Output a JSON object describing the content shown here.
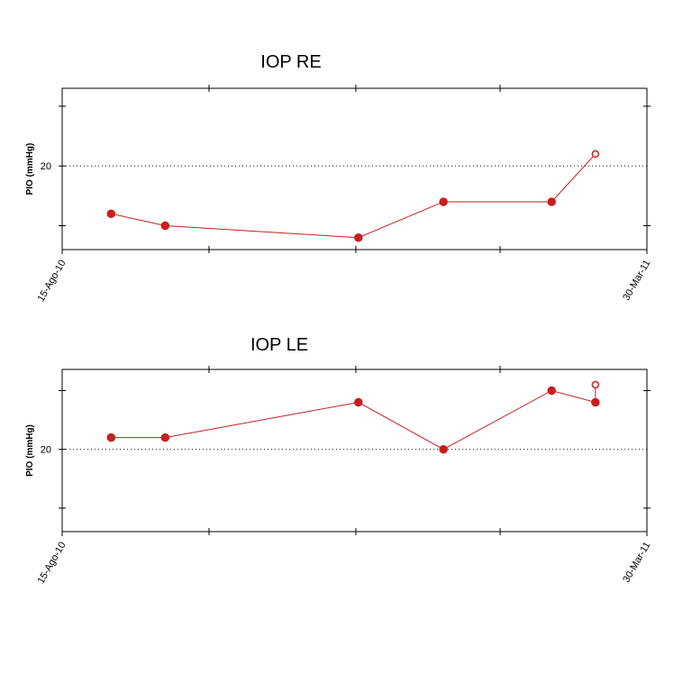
{
  "chart_data": [
    {
      "type": "line",
      "title": "IOP RE",
      "y_label": "PIO (mmHg)",
      "x": [
        "2010-09-03",
        "2010-09-24",
        "2010-12-08",
        "2011-01-10",
        "2011-02-21",
        "2011-03-10"
      ],
      "series": [
        {
          "name": "IOP RE",
          "color": "#c81e1e",
          "values": [
            16,
            15,
            14,
            17,
            17,
            21
          ],
          "hollow": [
            false,
            false,
            false,
            false,
            false,
            true
          ]
        }
      ],
      "xlim": [
        "2010-08-15",
        "2011-03-30"
      ],
      "xticks": [
        {
          "value": "2010-08-15",
          "label": "15-Ago-10"
        },
        {
          "value": "2011-03-30",
          "label": "30-Mar-11"
        }
      ],
      "minor_xticks": [
        "2010-10-11",
        "2010-12-07",
        "2011-02-01"
      ],
      "ylim": [
        13,
        26.5
      ],
      "yticks": [
        20
      ],
      "minor_yticks": [
        15,
        25
      ],
      "grid": true
    },
    {
      "type": "line",
      "title": "IOP LE",
      "y_label": "PIO (mmHg)",
      "x": [
        "2010-09-03",
        "2010-09-24",
        "2010-12-08",
        "2011-01-10",
        "2011-02-21",
        "2011-03-10",
        "2011-03-10"
      ],
      "series": [
        {
          "name": "IOP LE",
          "color": "#c81e1e",
          "values": [
            21,
            21,
            24,
            20,
            25,
            24,
            25.5
          ],
          "hollow": [
            false,
            false,
            false,
            false,
            false,
            false,
            true
          ]
        }
      ],
      "xlim": [
        "2010-08-15",
        "2011-03-30"
      ],
      "xticks": [
        {
          "value": "2010-08-15",
          "label": "15-Ago-10"
        },
        {
          "value": "2011-03-30",
          "label": "30-Mar-11"
        }
      ],
      "minor_xticks": [
        "2010-10-11",
        "2010-12-07",
        "2011-02-01"
      ],
      "ylim": [
        13,
        26.8
      ],
      "yticks": [
        20
      ],
      "minor_yticks": [
        15,
        25
      ],
      "grid": true
    }
  ]
}
